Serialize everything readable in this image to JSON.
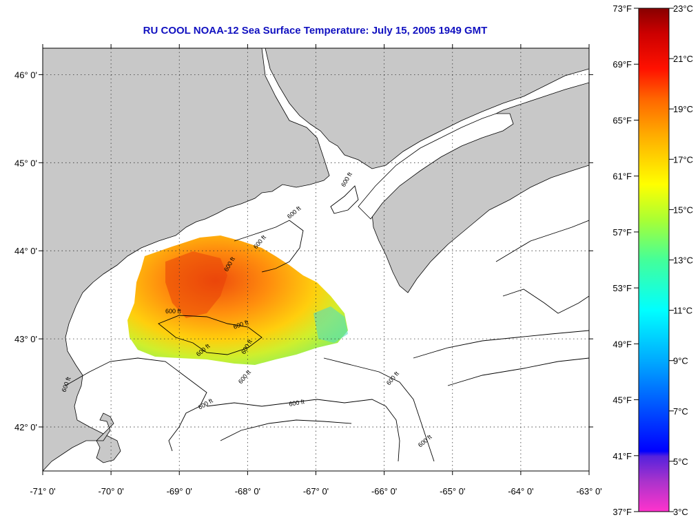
{
  "title": "RU COOL  NOAA-12  Sea Surface Temperature:  July 15, 2005 1949 GMT",
  "map": {
    "lon_range": [
      -71,
      -63
    ],
    "lat_range": [
      41.5,
      46.3
    ],
    "lon_ticks": [
      {
        "value": -71,
        "label": "-71° 0'"
      },
      {
        "value": -70,
        "label": "-70° 0'"
      },
      {
        "value": -69,
        "label": "-69° 0'"
      },
      {
        "value": -68,
        "label": "-68° 0'"
      },
      {
        "value": -67,
        "label": "-67° 0'"
      },
      {
        "value": -66,
        "label": "-66° 0'"
      },
      {
        "value": -65,
        "label": "-65° 0'"
      },
      {
        "value": -64,
        "label": "-64° 0'"
      },
      {
        "value": -63,
        "label": "-63° 0'"
      }
    ],
    "lat_ticks": [
      {
        "value": 42,
        "label": "42° 0'"
      },
      {
        "value": 43,
        "label": "43° 0'"
      },
      {
        "value": 44,
        "label": "44° 0'"
      },
      {
        "value": 45,
        "label": "45° 0'"
      },
      {
        "value": 46,
        "label": "46° 0'"
      }
    ],
    "grid": "dotted",
    "land_color": "#c8c8c8",
    "water_color": "#ffffff",
    "contour_label": "600 ft",
    "contour_labels_count": 14
  },
  "colorbar": {
    "fahrenheit": [
      "73°F",
      "69°F",
      "65°F",
      "61°F",
      "57°F",
      "53°F",
      "49°F",
      "45°F",
      "41°F",
      "37°F"
    ],
    "celsius": [
      "23°C",
      "21°C",
      "19°C",
      "17°C",
      "15°C",
      "13°C",
      "11°C",
      "9°C",
      "7°C",
      "5°C",
      "3°C"
    ],
    "colors": [
      "#ff33cc",
      "#9933cc",
      "#0000ff",
      "#00aaff",
      "#00ffff",
      "#33ffaa",
      "#aaff33",
      "#ffff00",
      "#ffaa00",
      "#ff6600",
      "#ff0000",
      "#880000"
    ]
  }
}
